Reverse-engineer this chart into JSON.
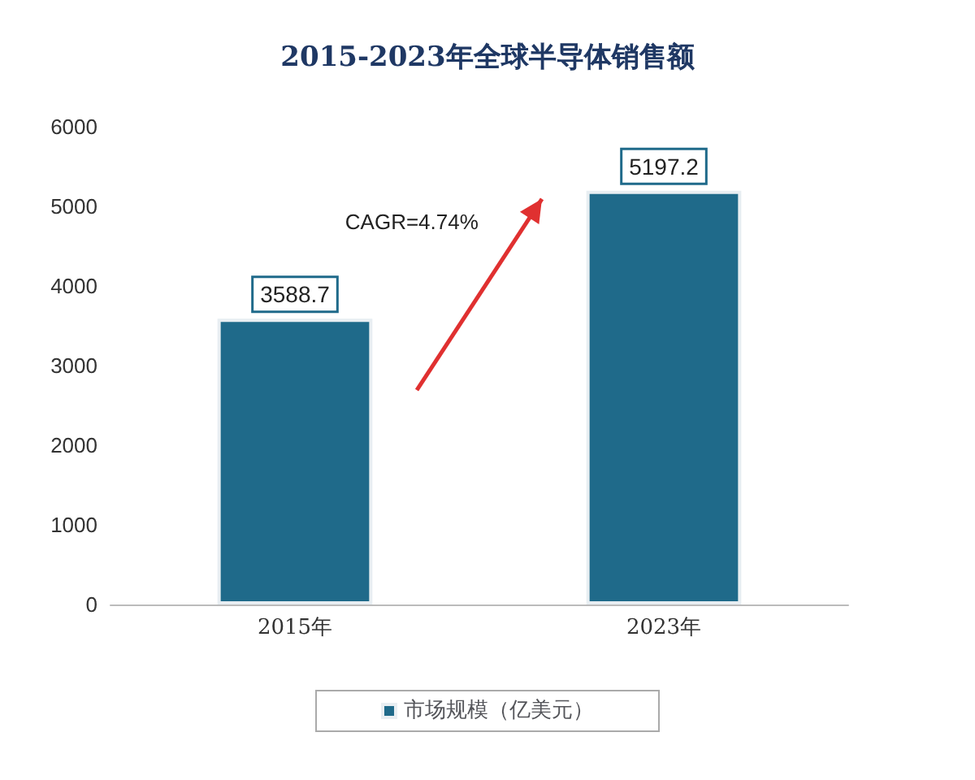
{
  "chart_data": {
    "type": "bar",
    "title": "2015-2023年全球半导体销售额",
    "categories": [
      "2015年",
      "2023年"
    ],
    "series": [
      {
        "name": "市场规模（亿美元）",
        "color": "#1f6a8a",
        "values": [
          3588.7,
          5197.2
        ]
      }
    ],
    "ylim": [
      0,
      6000
    ],
    "yticks": [
      0,
      1000,
      2000,
      3000,
      4000,
      5000,
      6000
    ],
    "grid": false,
    "legend": "bottom",
    "data_labels": true,
    "annotations": [
      "CAGR=4.74%"
    ]
  }
}
